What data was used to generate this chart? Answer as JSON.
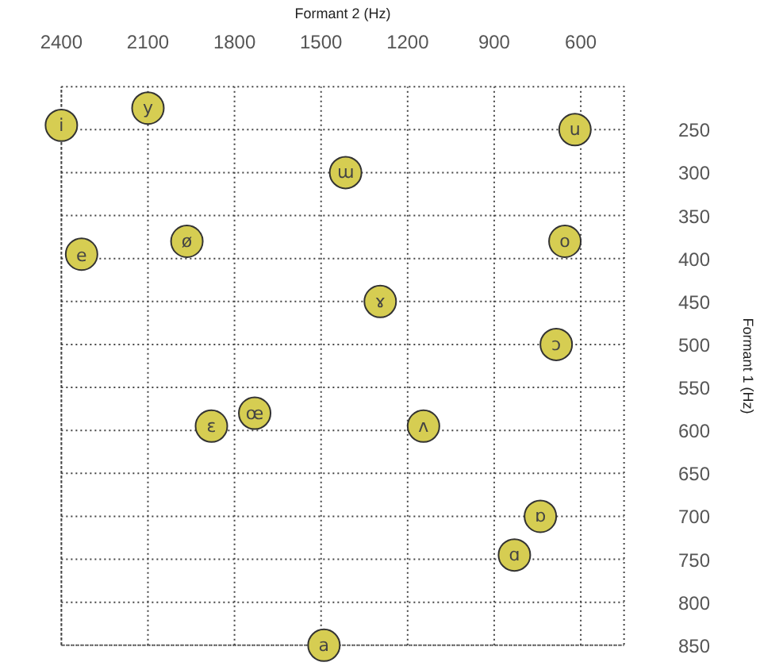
{
  "chart_data": {
    "type": "scatter",
    "xlabel": "Formant 2 (Hz)",
    "ylabel": "Formant 1 (Hz)",
    "xlim": [
      2400,
      450
    ],
    "ylim": [
      850,
      200
    ],
    "xticks": [
      2400,
      2100,
      1800,
      1500,
      1200,
      900,
      600
    ],
    "yticks": [
      250,
      300,
      350,
      400,
      450,
      500,
      550,
      600,
      650,
      700,
      750,
      800,
      850
    ],
    "grid": true,
    "marker": "circle",
    "series": [
      {
        "color": "#d6cd52",
        "x": [
          2400,
          2100,
          620,
          1415,
          2330,
          1965,
          655,
          1295,
          685,
          1880,
          1730,
          1145,
          740,
          830,
          1490
        ],
        "values": [
          245,
          225,
          250,
          300,
          395,
          380,
          380,
          450,
          500,
          595,
          580,
          595,
          700,
          745,
          850
        ]
      }
    ],
    "annotations": [
      {
        "text": "i",
        "x": 2400,
        "y": 245
      },
      {
        "text": "y",
        "x": 2100,
        "y": 225
      },
      {
        "text": "u",
        "x": 620,
        "y": 250
      },
      {
        "text": "ɯ",
        "x": 1415,
        "y": 300
      },
      {
        "text": "e",
        "x": 2330,
        "y": 395
      },
      {
        "text": "ø",
        "x": 1965,
        "y": 380
      },
      {
        "text": "o",
        "x": 655,
        "y": 380
      },
      {
        "text": "ɤ",
        "x": 1295,
        "y": 450
      },
      {
        "text": "ɔ",
        "x": 685,
        "y": 500
      },
      {
        "text": "ɛ",
        "x": 1880,
        "y": 595
      },
      {
        "text": "œ",
        "x": 1730,
        "y": 580
      },
      {
        "text": "ʌ",
        "x": 1145,
        "y": 595
      },
      {
        "text": "ɒ",
        "x": 740,
        "y": 700
      },
      {
        "text": "ɑ",
        "x": 830,
        "y": 745
      },
      {
        "text": "a",
        "x": 1490,
        "y": 850
      }
    ]
  }
}
